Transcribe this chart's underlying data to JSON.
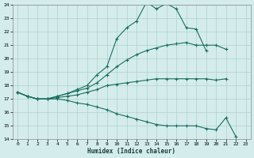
{
  "xlabel": "Humidex (Indice chaleur)",
  "xlim": [
    -0.5,
    23.5
  ],
  "ylim": [
    14,
    24
  ],
  "xticks": [
    0,
    1,
    2,
    3,
    4,
    5,
    6,
    7,
    8,
    9,
    10,
    11,
    12,
    13,
    14,
    15,
    16,
    17,
    18,
    19,
    20,
    21,
    22,
    23
  ],
  "yticks": [
    14,
    15,
    16,
    17,
    18,
    19,
    20,
    21,
    22,
    23,
    24
  ],
  "bg_color": "#d4edec",
  "grid_color": "#b0d0cc",
  "line_color": "#1a6e60",
  "curves": [
    {
      "x": [
        0,
        1,
        2,
        3,
        4,
        5,
        6,
        7,
        8,
        9,
        10,
        11,
        12,
        13,
        14,
        15,
        16,
        17,
        18,
        19
      ],
      "y": [
        17.5,
        17.2,
        17.0,
        17.0,
        17.2,
        17.4,
        17.7,
        18.0,
        18.8,
        19.4,
        21.5,
        22.3,
        22.8,
        24.2,
        23.7,
        24.1,
        23.7,
        22.3,
        22.2,
        20.6
      ]
    },
    {
      "x": [
        0,
        1,
        2,
        3,
        4,
        5,
        6,
        7,
        8,
        9,
        10,
        11,
        12,
        13,
        14,
        15,
        16,
        17,
        18,
        19,
        20,
        21
      ],
      "y": [
        17.5,
        17.2,
        17.0,
        17.0,
        17.2,
        17.4,
        17.6,
        17.8,
        18.2,
        18.8,
        19.4,
        19.9,
        20.3,
        20.6,
        20.8,
        21.0,
        21.1,
        21.2,
        21.0,
        21.0,
        21.0,
        20.7
      ]
    },
    {
      "x": [
        0,
        1,
        2,
        3,
        4,
        5,
        6,
        7,
        8,
        9,
        10,
        11,
        12,
        13,
        14,
        15,
        16,
        17,
        18,
        19,
        20,
        21
      ],
      "y": [
        17.5,
        17.2,
        17.0,
        17.0,
        17.1,
        17.2,
        17.3,
        17.5,
        17.7,
        18.0,
        18.1,
        18.2,
        18.3,
        18.4,
        18.5,
        18.5,
        18.5,
        18.5,
        18.5,
        18.5,
        18.4,
        18.5
      ]
    },
    {
      "x": [
        0,
        1,
        2,
        3,
        4,
        5,
        6,
        7,
        8,
        9,
        10,
        11,
        12,
        13,
        14,
        15,
        16,
        17,
        18,
        19,
        20,
        21,
        22
      ],
      "y": [
        17.5,
        17.2,
        17.0,
        17.0,
        17.0,
        16.9,
        16.7,
        16.6,
        16.4,
        16.2,
        15.9,
        15.7,
        15.5,
        15.3,
        15.1,
        15.0,
        15.0,
        15.0,
        15.0,
        14.8,
        14.7,
        15.6,
        14.2
      ]
    }
  ]
}
